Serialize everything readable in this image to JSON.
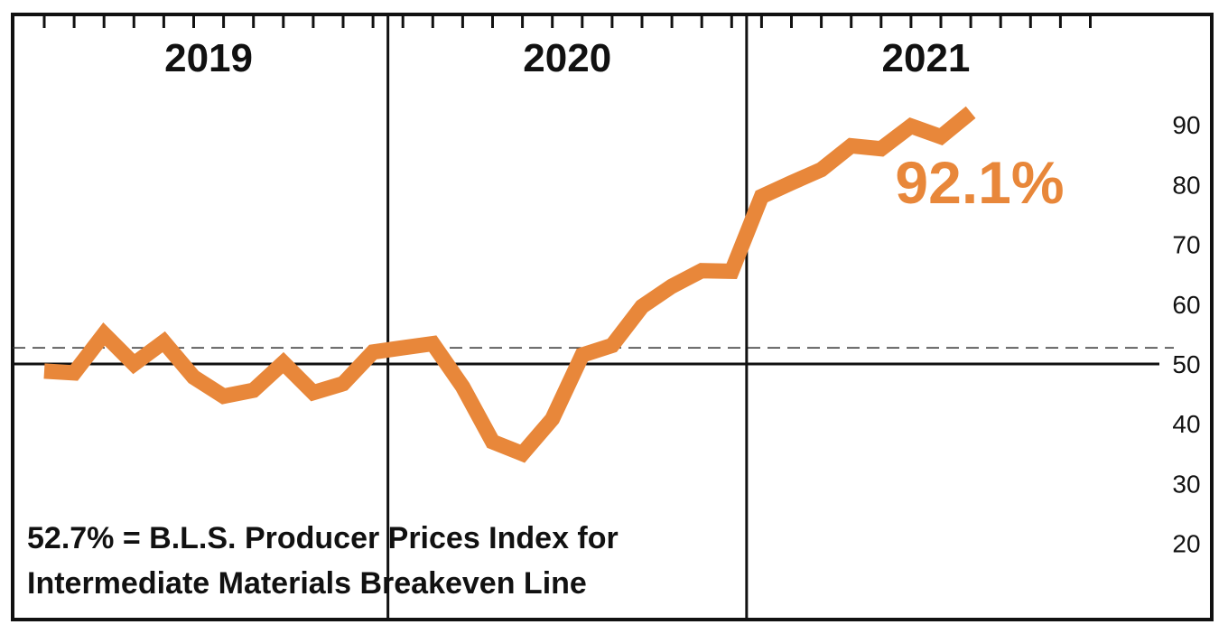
{
  "chart_data": {
    "type": "line",
    "title": "",
    "xlabel": "",
    "ylabel": "",
    "years": [
      "2019",
      "2020",
      "2021"
    ],
    "months_per_year": 12,
    "ylim": [
      10,
      105
    ],
    "yticks": [
      {
        "value": 90,
        "label": "90"
      },
      {
        "value": 80,
        "label": "80"
      },
      {
        "value": 70,
        "label": "70"
      },
      {
        "value": 60,
        "label": "60"
      },
      {
        "value": 50,
        "label": "50"
      },
      {
        "value": 40,
        "label": "40"
      },
      {
        "value": 30,
        "label": "30"
      },
      {
        "value": 20,
        "label": "20"
      }
    ],
    "reference_line": 50,
    "breakeven_line": 52.7,
    "series": [
      {
        "name": "",
        "color": "#e8873a",
        "values": [
          48.8,
          48.5,
          55.0,
          50.0,
          53.7,
          47.8,
          44.6,
          45.6,
          50.2,
          45.2,
          46.7,
          52.0,
          52.7,
          53.4,
          46.2,
          37.0,
          35.0,
          40.8,
          51.5,
          53.1,
          59.6,
          63.0,
          65.6,
          65.5,
          78.0,
          80.3,
          82.5,
          86.5,
          86.0,
          89.8,
          88.0,
          92.1
        ]
      }
    ],
    "end_label": "92.1%",
    "note_lines": [
      "52.7% = B.L.S. Producer Prices Index for",
      "Intermediate Materials Breakeven Line"
    ],
    "grid": false
  },
  "colors": {
    "line": "#e8873a",
    "frame": "#111111",
    "breakeven": "#333333"
  }
}
